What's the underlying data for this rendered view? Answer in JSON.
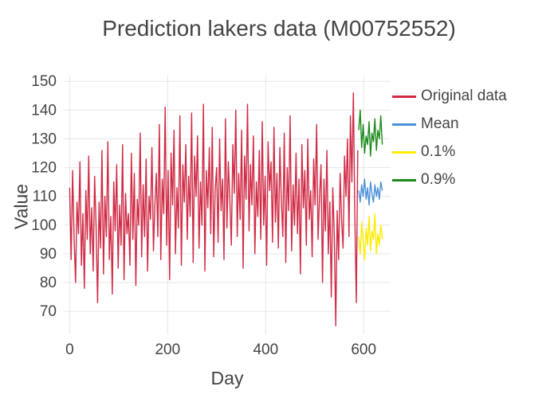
{
  "chart_data": {
    "type": "line",
    "title": "Prediction lakers data (M00752552)",
    "xlabel": "Day",
    "ylabel": "Value",
    "x_range": [
      -12,
      655
    ],
    "y_range": [
      62,
      152
    ],
    "x_ticks": [
      0,
      200,
      400,
      600
    ],
    "y_ticks": [
      70,
      80,
      90,
      100,
      110,
      120,
      130,
      140,
      150
    ],
    "grid": true,
    "legend_position": "right",
    "text_color": "#444444",
    "grid_color": "#e6e6e6",
    "series": [
      {
        "name": "Original data",
        "color": "#d02a44",
        "x0": 0,
        "dx": 3,
        "values": [
          113,
          88,
          119,
          96,
          80,
          108,
          97,
          122,
          86,
          104,
          78,
          112,
          95,
          124,
          90,
          106,
          84,
          117,
          99,
          73,
          108,
          92,
          126,
          83,
          110,
          96,
          129,
          88,
          103,
          76,
          115,
          98,
          121,
          85,
          107,
          93,
          128,
          81,
          111,
          97,
          104,
          86,
          125,
          95,
          118,
          79,
          109,
          100,
          132,
          89,
          114,
          96,
          123,
          84,
          110,
          102,
          127,
          91,
          107,
          118,
          96,
          135,
          88,
          116,
          104,
          141,
          93,
          119,
          81,
          125,
          107,
          133,
          90,
          113,
          99,
          138,
          86,
          121,
          108,
          128,
          95,
          117,
          103,
          139,
          87,
          124,
          110,
          131,
          92,
          115,
          100,
          142,
          84,
          119,
          106,
          127,
          97,
          134,
          89,
          112,
          120,
          94,
          130,
          105,
          116,
          88,
          137,
          99,
          122,
          108,
          93,
          128,
          111,
          140,
          96,
          118,
          102,
          133,
          85,
          124,
          109,
          142,
          98,
          121,
          107,
          131,
          90,
          115,
          103,
          126,
          95,
          136,
          100,
          117,
          86,
          129,
          112,
          122,
          94,
          134,
          101,
          118,
          92,
          127,
          109,
          96,
          132,
          87,
          120,
          105,
          138,
          91,
          114,
          100,
          125,
          97,
          116,
          83,
          128,
          106,
          119,
          93,
          130,
          102,
          112,
          89,
          123,
          107,
          135,
          95,
          110,
          121,
          80,
          116,
          98,
          126,
          90,
          108,
          75,
          113,
          97,
          65,
          105,
          88,
          118,
          102,
          92,
          124,
          110,
          130,
          96,
          138,
          115,
          146,
          104,
          73,
          126
        ]
      },
      {
        "name": "Mean",
        "color": "#4a90d9",
        "x0": 590,
        "dx": 3,
        "values": [
          112,
          108,
          114,
          110,
          116,
          109,
          113,
          107,
          115,
          111,
          108,
          114,
          110,
          113,
          109,
          115,
          112
        ]
      },
      {
        "name": "0.1%",
        "color": "#ffeb00",
        "x0": 590,
        "dx": 3,
        "values": [
          96,
          90,
          101,
          94,
          88,
          99,
          93,
          103,
          91,
          98,
          95,
          104,
          90,
          97,
          93,
          100,
          95
        ]
      },
      {
        "name": "0.9%",
        "color": "#1b8a1b",
        "x0": 590,
        "dx": 3,
        "values": [
          133,
          140,
          127,
          135,
          125,
          131,
          128,
          136,
          124,
          132,
          129,
          137,
          126,
          133,
          130,
          138,
          128
        ]
      }
    ]
  }
}
